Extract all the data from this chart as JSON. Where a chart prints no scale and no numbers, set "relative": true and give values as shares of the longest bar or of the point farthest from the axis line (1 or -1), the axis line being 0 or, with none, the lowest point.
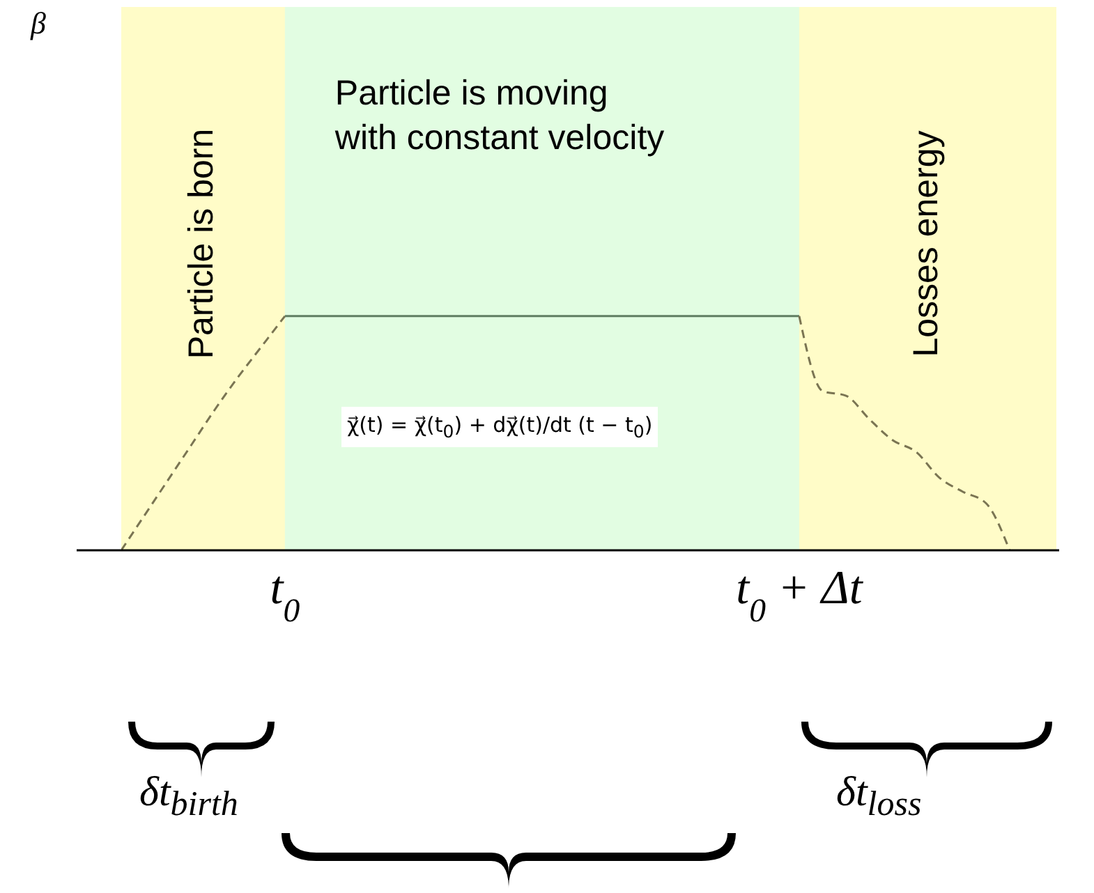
{
  "chart_data": {
    "type": "line",
    "relative": true,
    "categories": [
      null,
      null,
      null,
      null,
      null,
      null,
      null,
      "t$_{0}$",
      null,
      null,
      null,
      null,
      null,
      null,
      null,
      null,
      null,
      null,
      null,
      null,
      null,
      null,
      null,
      null,
      null,
      null,
      null,
      null,
      null,
      "t$_{0}$ + Δt",
      null,
      null,
      null,
      null,
      null,
      null,
      null,
      null,
      null,
      null,
      null
    ],
    "tick_labels": "x",
    "marker": "none",
    "series": [
      {
        "color": "#7a7452",
        "line_style": "dashed",
        "values": [
          0,
          0.15,
          0.3,
          0.45,
          0.6,
          0.74,
          0.87,
          1,
          null,
          null,
          null,
          null,
          null,
          null,
          null,
          null,
          null,
          null,
          null,
          null,
          null,
          null,
          null,
          null,
          null,
          null,
          null,
          null,
          null,
          null,
          null,
          null,
          null,
          null,
          null,
          null,
          null,
          null,
          null,
          null,
          null
        ]
      },
      {
        "color": "#5f7d62",
        "line_style": "solid",
        "values": [
          null,
          null,
          null,
          null,
          null,
          null,
          null,
          1,
          1,
          1,
          1,
          1,
          1,
          1,
          1,
          1,
          1,
          1,
          1,
          1,
          1,
          1,
          1,
          1,
          1,
          1,
          1,
          1,
          1,
          1,
          null,
          null,
          null,
          null,
          null,
          null,
          null,
          null,
          null,
          null,
          null
        ]
      },
      {
        "color": "#7a7452",
        "line_style": "dashed",
        "values": [
          null,
          null,
          null,
          null,
          null,
          null,
          null,
          null,
          null,
          null,
          null,
          null,
          null,
          null,
          null,
          null,
          null,
          null,
          null,
          null,
          null,
          null,
          null,
          null,
          null,
          null,
          null,
          null,
          null,
          1,
          0.68,
          0.66,
          0.56,
          0.47,
          0.42,
          0.31,
          0.25,
          0.2,
          0,
          null,
          null
        ]
      }
    ],
    "bands": [
      {
        "axis": "x",
        "from": "t$_{0}$",
        "to": "t$_{0}$ + Δt",
        "label": "Particle is moving with constant velocity",
        "color": "#e2fde2"
      }
    ],
    "annotations": [
      "χ⃗(t) = χ⃗(t$_{0}$) + dχ⃗(t)/dt (t − t$_{0}$)",
      "δt$_{birth}$",
      "δt$_{loss}$",
      "β",
      "Particle is born",
      "Losses energy"
    ]
  }
}
